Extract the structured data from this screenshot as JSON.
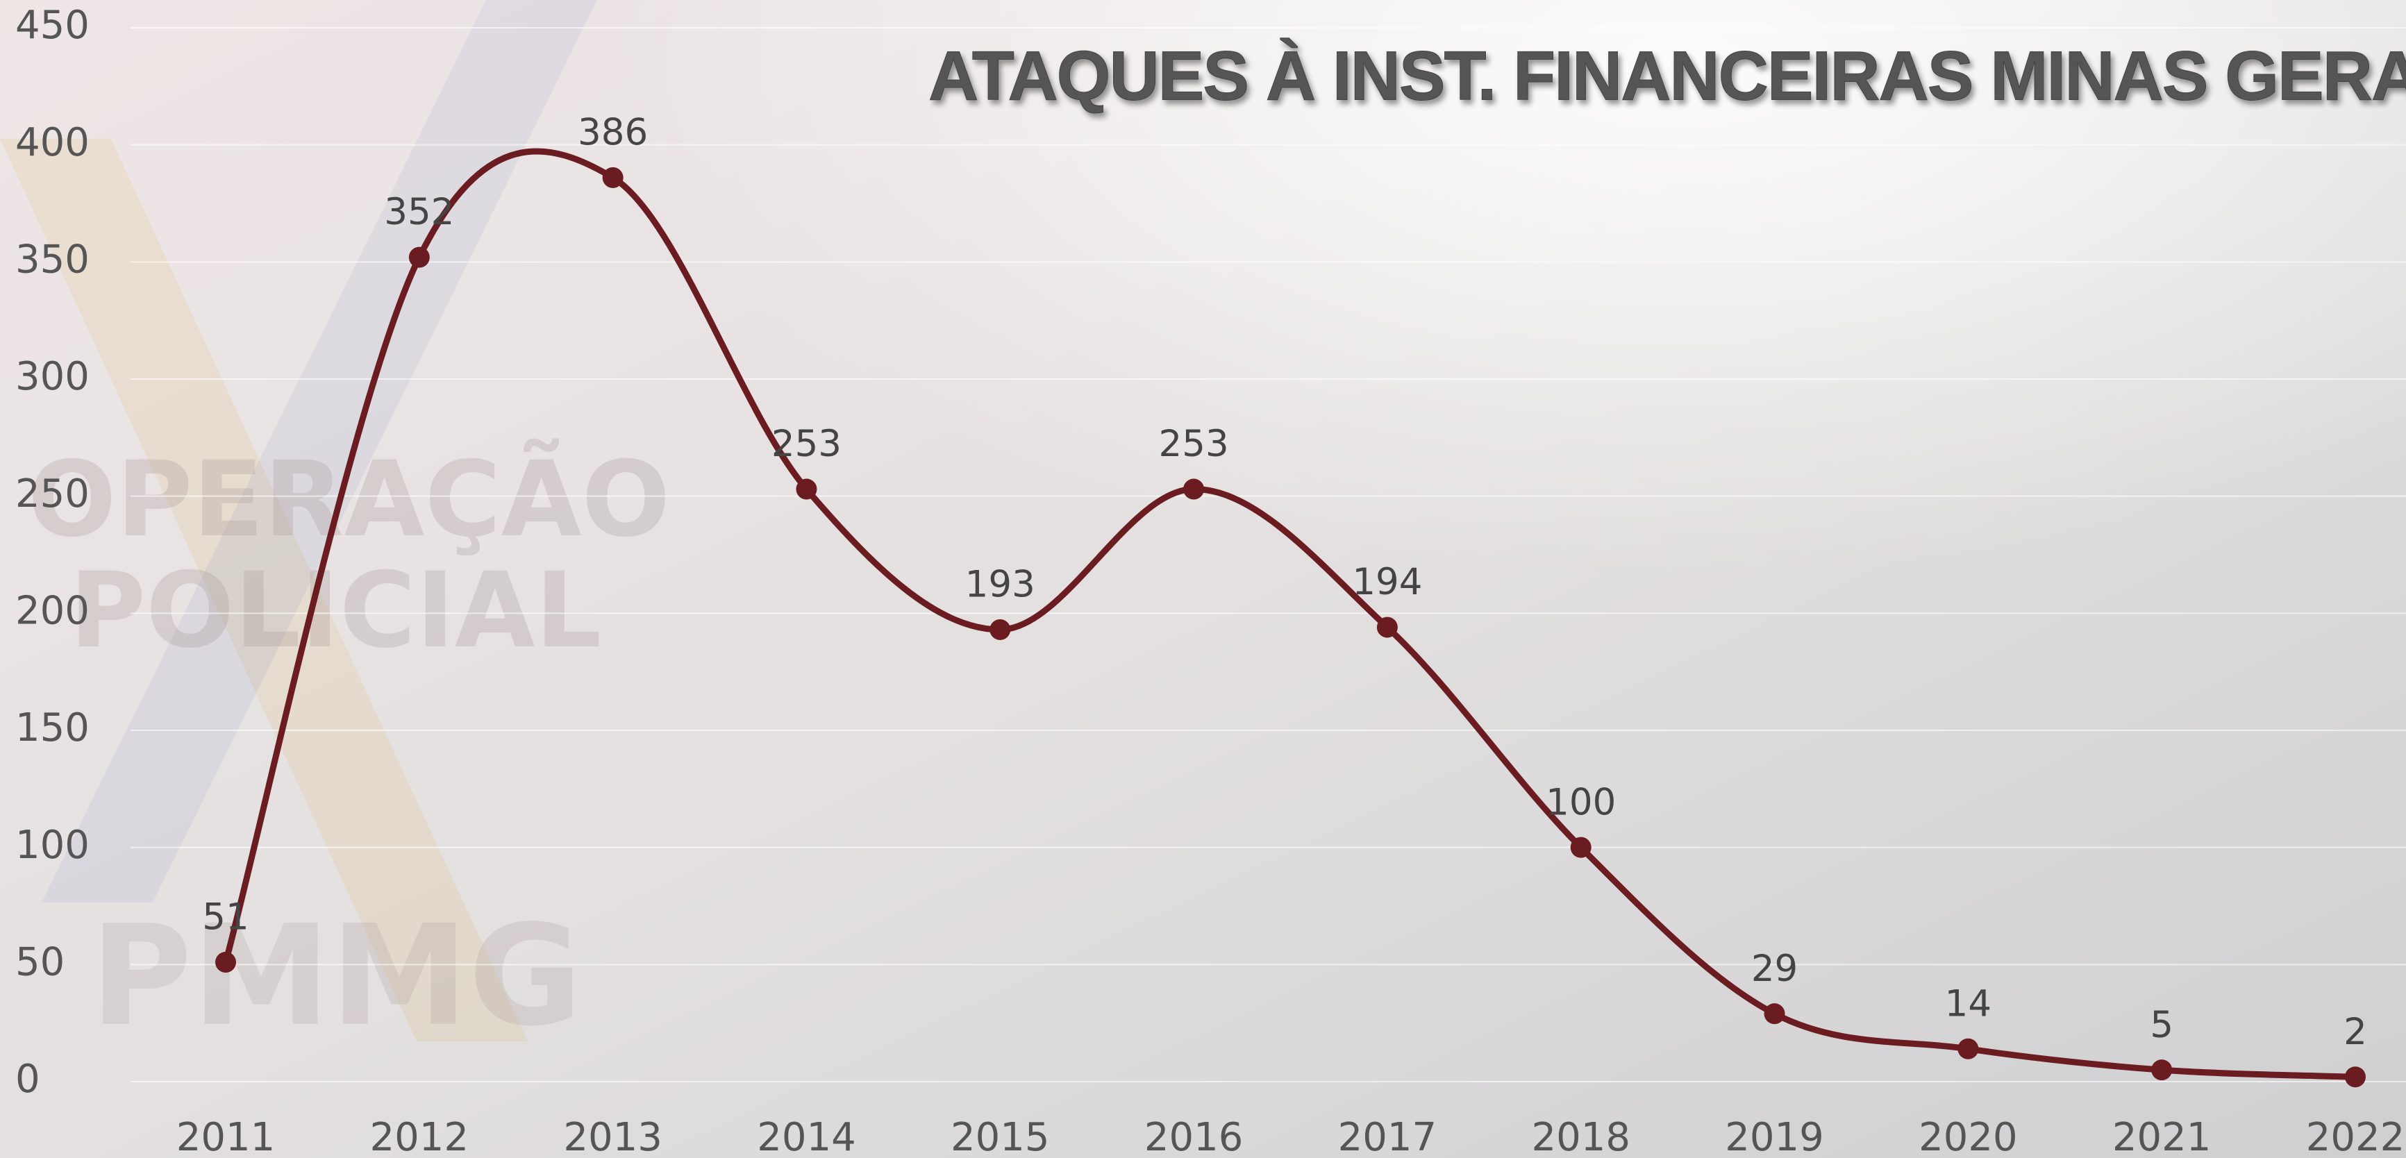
{
  "chart_data": {
    "type": "line",
    "title": "ATAQUES À INST. FINANCEIRAS MINAS GERAIS",
    "watermark": [
      "OPERAÇÃO",
      "POLICIAL",
      "PMMG"
    ],
    "categories": [
      "2011",
      "2012",
      "2013",
      "2014",
      "2015",
      "2016",
      "2017",
      "2018",
      "2019",
      "2020",
      "2021",
      "2022"
    ],
    "series": [
      {
        "color": "#6b1c20",
        "values": [
          51,
          352,
          386,
          253,
          193,
          253,
          194,
          100,
          29,
          14,
          5,
          2
        ]
      }
    ],
    "ylim": [
      0,
      450
    ],
    "yticks": [
      0,
      50,
      100,
      150,
      200,
      250,
      300,
      350,
      400,
      450
    ],
    "grid": true,
    "smooth": true,
    "data_labels": true
  }
}
